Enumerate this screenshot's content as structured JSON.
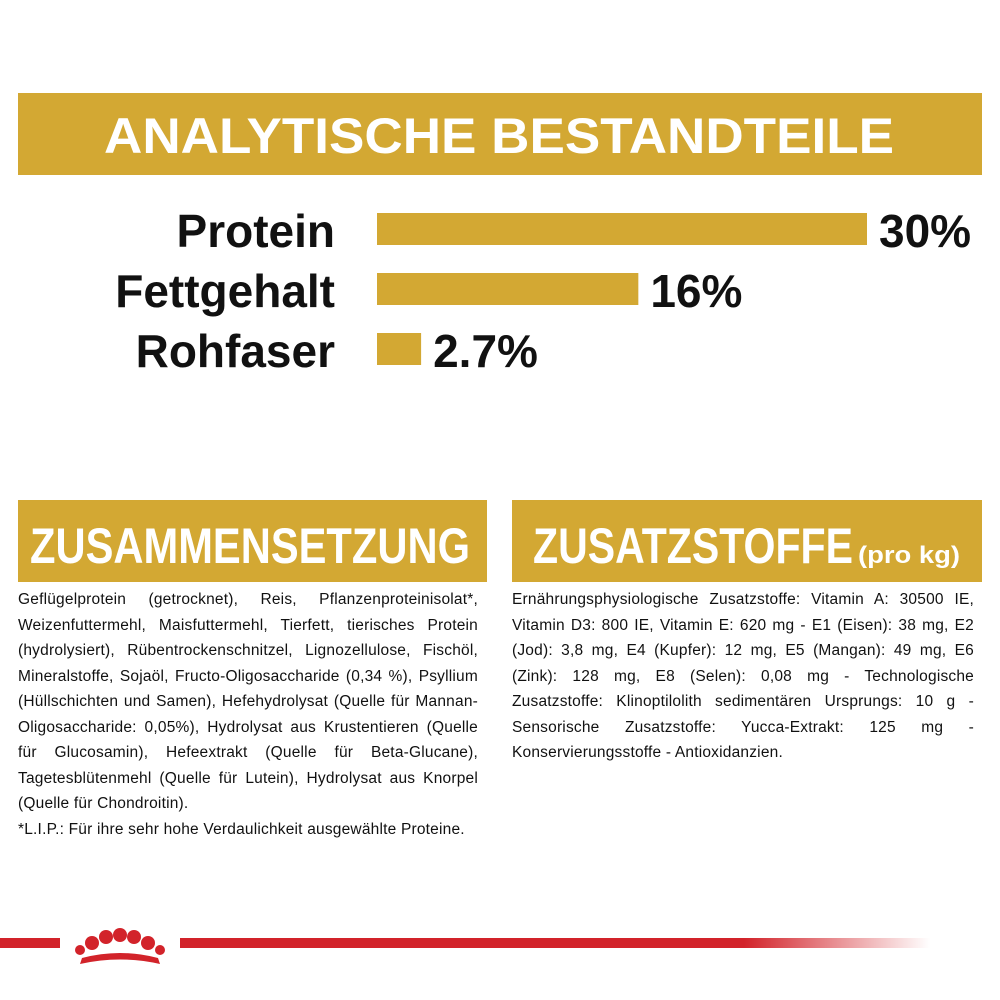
{
  "chart_data": {
    "type": "bar",
    "title": "ANALYTISCHE BESTANDTEILE",
    "categories": [
      "Protein",
      "Fettgehalt",
      "Rohfaser"
    ],
    "values": [
      30,
      16,
      2.7
    ],
    "value_labels": [
      "30%",
      "16%",
      "2.7%"
    ],
    "color": "#d3a833"
  },
  "composition": {
    "heading": "ZUSAMMENSETZUNG",
    "text": "Geflügelprotein (getrocknet), Reis, Pflanzenproteinisolat*, Weizenfuttermehl, Maisfuttermehl, Tierfett, tierisches Protein (hydrolysiert), Rübentrockenschnitzel, Lignozellulose, Fischöl, Mineralstoffe, Sojaöl, Fructo-Oligosaccharide (0,34 %), Psyllium (Hüllschichten und Samen), Hefehydrolysat (Quelle für Mannan-Oligosaccharide: 0,05%), Hydrolysat aus Krustentieren (Quelle für Glucosamin), Hefeextrakt (Quelle für Beta-Glucane), Tagetesblütenmehl (Quelle für Lutein), Hydrolysat aus Knorpel (Quelle für Chondroitin).",
    "footnote": "*L.I.P.: Für ihre sehr hohe Verdaulichkeit ausgewählte Proteine."
  },
  "additives": {
    "heading": "ZUSATZSTOFFE",
    "unit": "(pro kg)",
    "text": "Ernährungsphysiologische Zusatzstoffe: Vitamin A: 30500 IE, Vitamin D3: 800 IE, Vitamin E: 620 mg - E1 (Eisen): 38 mg, E2 (Jod): 3,8 mg, E4 (Kupfer): 12 mg, E5 (Mangan): 49 mg, E6 (Zink): 128 mg, E8 (Selen): 0,08 mg - Technologische Zusatzstoffe: Klinoptilolith sedimentären Ursprungs: 10 g - Sensorische Zusatzstoffe: Yucca-Extrakt: 125 mg - Konservierungsstoffe - Antioxidanzien."
  }
}
